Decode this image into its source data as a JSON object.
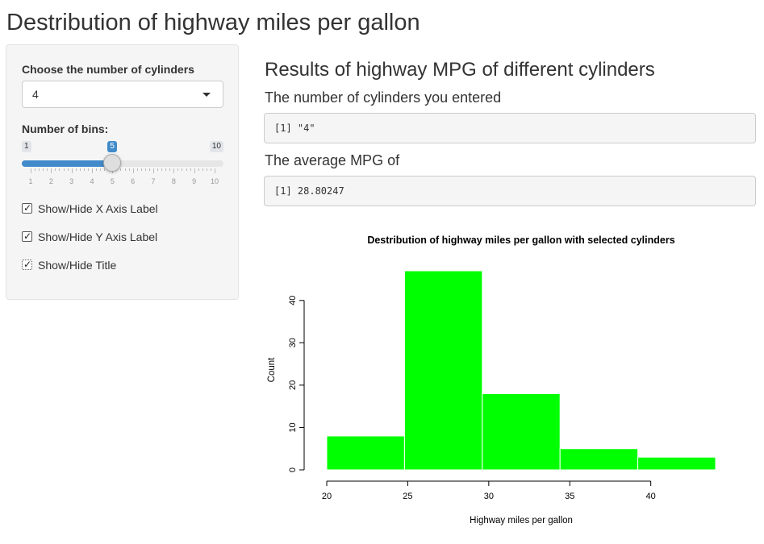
{
  "app": {
    "title": "Destribution of highway miles per gallon"
  },
  "sidebar": {
    "select_label": "Choose the number of cylinders",
    "select_value": "4",
    "slider_label": "Number of bins:",
    "slider": {
      "min": 1,
      "max": 10,
      "value": 5,
      "ticks": [
        1,
        2,
        3,
        4,
        5,
        6,
        7,
        8,
        9,
        10
      ],
      "min_label": "1",
      "max_label": "10",
      "value_label": "5"
    },
    "checkboxes": [
      {
        "label": "Show/Hide X Axis Label",
        "checked": true
      },
      {
        "label": "Show/Hide Y Axis Label",
        "checked": true
      },
      {
        "label": "Show/Hide Title",
        "checked": true
      }
    ]
  },
  "main": {
    "heading": "Results of highway MPG of different cylinders",
    "cyl_heading": "The number of cylinders you entered",
    "cyl_output": "[1] \"4\"",
    "avg_heading": "The average MPG of",
    "avg_output": "[1] 28.80247"
  },
  "chart_data": {
    "type": "bar",
    "title": "Destribution of highway miles per gallon with selected cylinders",
    "xlabel": "Highway miles per gallon",
    "ylabel": "Count",
    "bins": [
      {
        "start": 20,
        "end": 24.8,
        "count": 8
      },
      {
        "start": 24.8,
        "end": 29.6,
        "count": 47
      },
      {
        "start": 29.6,
        "end": 34.4,
        "count": 18
      },
      {
        "start": 34.4,
        "end": 39.2,
        "count": 5
      },
      {
        "start": 39.2,
        "end": 44,
        "count": 3
      }
    ],
    "xticks": [
      20,
      25,
      30,
      35,
      40
    ],
    "yticks": [
      0,
      10,
      20,
      30,
      40
    ],
    "xlim": [
      20,
      44
    ],
    "ylim": [
      0,
      47
    ],
    "bar_color": "#00ff00",
    "grid": false
  }
}
